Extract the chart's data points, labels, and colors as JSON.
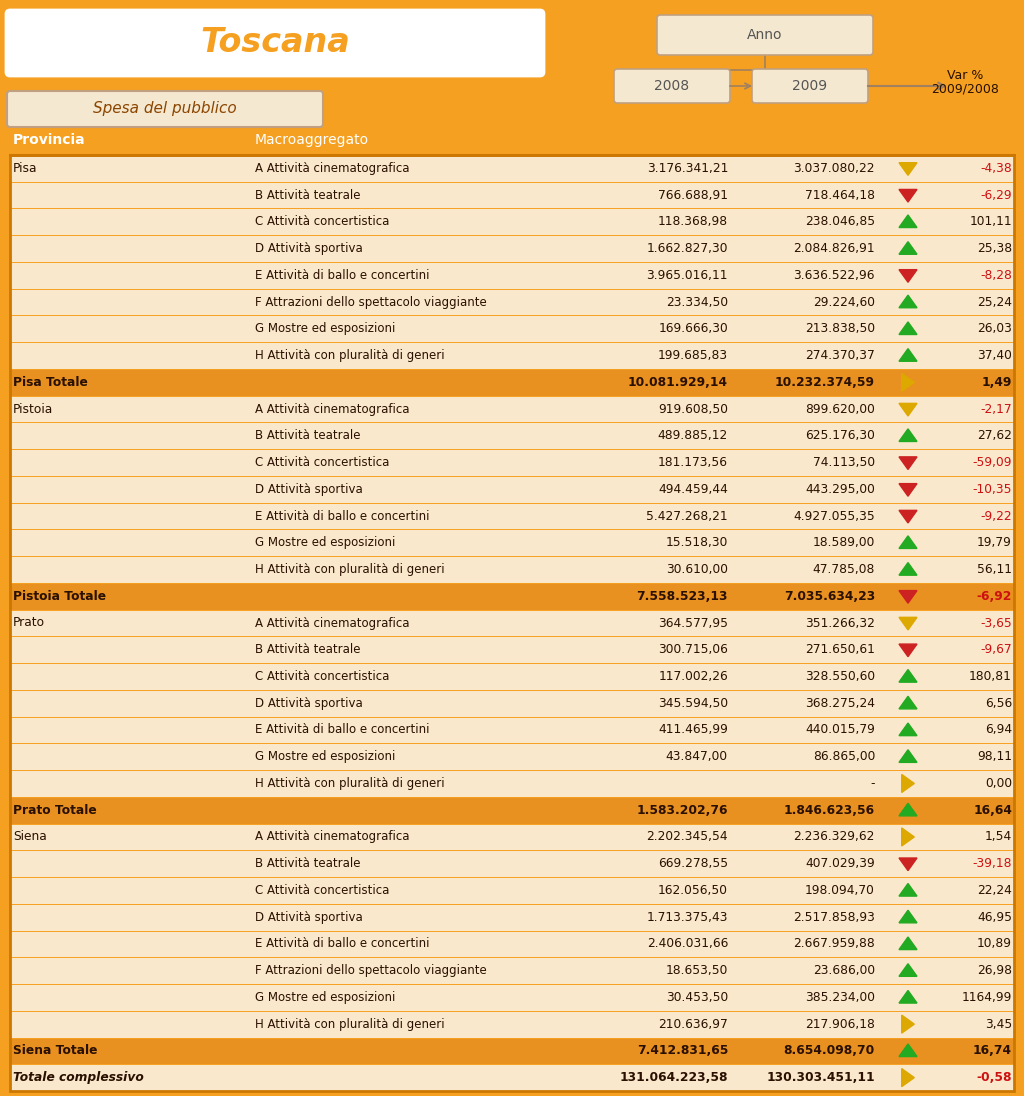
{
  "title": "Toscana",
  "subtitle": "Spesa del pubblico",
  "rows": [
    {
      "provincia": "Pisa",
      "macro": "A Attività cinematografica",
      "v2008": "3.176.341,21",
      "v2009": "3.037.080,22",
      "arrow": "down_yellow",
      "var": "-4,38",
      "var_neg": true
    },
    {
      "provincia": "",
      "macro": "B Attività teatrale",
      "v2008": "766.688,91",
      "v2009": "718.464,18",
      "arrow": "down_red",
      "var": "-6,29",
      "var_neg": true
    },
    {
      "provincia": "",
      "macro": "C Attività concertistica",
      "v2008": "118.368,98",
      "v2009": "238.046,85",
      "arrow": "up_green",
      "var": "101,11",
      "var_neg": false
    },
    {
      "provincia": "",
      "macro": "D Attività sportiva",
      "v2008": "1.662.827,30",
      "v2009": "2.084.826,91",
      "arrow": "up_green",
      "var": "25,38",
      "var_neg": false
    },
    {
      "provincia": "",
      "macro": "E Attività di ballo e concertini",
      "v2008": "3.965.016,11",
      "v2009": "3.636.522,96",
      "arrow": "down_red",
      "var": "-8,28",
      "var_neg": true
    },
    {
      "provincia": "",
      "macro": "F Attrazioni dello spettacolo viaggiante",
      "v2008": "23.334,50",
      "v2009": "29.224,60",
      "arrow": "up_green",
      "var": "25,24",
      "var_neg": false
    },
    {
      "provincia": "",
      "macro": "G Mostre ed esposizioni",
      "v2008": "169.666,30",
      "v2009": "213.838,50",
      "arrow": "up_green",
      "var": "26,03",
      "var_neg": false
    },
    {
      "provincia": "",
      "macro": "H Attività con pluralità di generi",
      "v2008": "199.685,83",
      "v2009": "274.370,37",
      "arrow": "up_green",
      "var": "37,40",
      "var_neg": false
    },
    {
      "provincia": "Pisa Totale",
      "macro": "",
      "v2008": "10.081.929,14",
      "v2009": "10.232.374,59",
      "arrow": "right_yellow",
      "var": "1,49",
      "var_neg": false,
      "is_total": true
    },
    {
      "provincia": "Pistoia",
      "macro": "A Attività cinematografica",
      "v2008": "919.608,50",
      "v2009": "899.620,00",
      "arrow": "down_yellow",
      "var": "-2,17",
      "var_neg": true
    },
    {
      "provincia": "",
      "macro": "B Attività teatrale",
      "v2008": "489.885,12",
      "v2009": "625.176,30",
      "arrow": "up_green",
      "var": "27,62",
      "var_neg": false
    },
    {
      "provincia": "",
      "macro": "C Attività concertistica",
      "v2008": "181.173,56",
      "v2009": "74.113,50",
      "arrow": "down_red",
      "var": "-59,09",
      "var_neg": true
    },
    {
      "provincia": "",
      "macro": "D Attività sportiva",
      "v2008": "494.459,44",
      "v2009": "443.295,00",
      "arrow": "down_red",
      "var": "-10,35",
      "var_neg": true
    },
    {
      "provincia": "",
      "macro": "E Attività di ballo e concertini",
      "v2008": "5.427.268,21",
      "v2009": "4.927.055,35",
      "arrow": "down_red",
      "var": "-9,22",
      "var_neg": true
    },
    {
      "provincia": "",
      "macro": "G Mostre ed esposizioni",
      "v2008": "15.518,30",
      "v2009": "18.589,00",
      "arrow": "up_green",
      "var": "19,79",
      "var_neg": false
    },
    {
      "provincia": "",
      "macro": "H Attività con pluralità di generi",
      "v2008": "30.610,00",
      "v2009": "47.785,08",
      "arrow": "up_green",
      "var": "56,11",
      "var_neg": false
    },
    {
      "provincia": "Pistoia Totale",
      "macro": "",
      "v2008": "7.558.523,13",
      "v2009": "7.035.634,23",
      "arrow": "down_red",
      "var": "-6,92",
      "var_neg": true,
      "is_total": true
    },
    {
      "provincia": "Prato",
      "macro": "A Attività cinematografica",
      "v2008": "364.577,95",
      "v2009": "351.266,32",
      "arrow": "down_yellow",
      "var": "-3,65",
      "var_neg": true
    },
    {
      "provincia": "",
      "macro": "B Attività teatrale",
      "v2008": "300.715,06",
      "v2009": "271.650,61",
      "arrow": "down_red",
      "var": "-9,67",
      "var_neg": true
    },
    {
      "provincia": "",
      "macro": "C Attività concertistica",
      "v2008": "117.002,26",
      "v2009": "328.550,60",
      "arrow": "up_green",
      "var": "180,81",
      "var_neg": false
    },
    {
      "provincia": "",
      "macro": "D Attività sportiva",
      "v2008": "345.594,50",
      "v2009": "368.275,24",
      "arrow": "up_green",
      "var": "6,56",
      "var_neg": false
    },
    {
      "provincia": "",
      "macro": "E Attività di ballo e concertini",
      "v2008": "411.465,99",
      "v2009": "440.015,79",
      "arrow": "up_green",
      "var": "6,94",
      "var_neg": false
    },
    {
      "provincia": "",
      "macro": "G Mostre ed esposizioni",
      "v2008": "43.847,00",
      "v2009": "86.865,00",
      "arrow": "up_green",
      "var": "98,11",
      "var_neg": false
    },
    {
      "provincia": "",
      "macro": "H Attività con pluralità di generi",
      "v2008": "",
      "v2009": "-",
      "arrow": "right_yellow",
      "var": "0,00",
      "var_neg": false
    },
    {
      "provincia": "Prato Totale",
      "macro": "",
      "v2008": "1.583.202,76",
      "v2009": "1.846.623,56",
      "arrow": "up_green",
      "var": "16,64",
      "var_neg": false,
      "is_total": true
    },
    {
      "provincia": "Siena",
      "macro": "A Attività cinematografica",
      "v2008": "2.202.345,54",
      "v2009": "2.236.329,62",
      "arrow": "right_yellow",
      "var": "1,54",
      "var_neg": false
    },
    {
      "provincia": "",
      "macro": "B Attività teatrale",
      "v2008": "669.278,55",
      "v2009": "407.029,39",
      "arrow": "down_red",
      "var": "-39,18",
      "var_neg": true
    },
    {
      "provincia": "",
      "macro": "C Attività concertistica",
      "v2008": "162.056,50",
      "v2009": "198.094,70",
      "arrow": "up_green",
      "var": "22,24",
      "var_neg": false
    },
    {
      "provincia": "",
      "macro": "D Attività sportiva",
      "v2008": "1.713.375,43",
      "v2009": "2.517.858,93",
      "arrow": "up_green",
      "var": "46,95",
      "var_neg": false
    },
    {
      "provincia": "",
      "macro": "E Attività di ballo e concertini",
      "v2008": "2.406.031,66",
      "v2009": "2.667.959,88",
      "arrow": "up_green",
      "var": "10,89",
      "var_neg": false
    },
    {
      "provincia": "",
      "macro": "F Attrazioni dello spettacolo viaggiante",
      "v2008": "18.653,50",
      "v2009": "23.686,00",
      "arrow": "up_green",
      "var": "26,98",
      "var_neg": false
    },
    {
      "provincia": "",
      "macro": "G Mostre ed esposizioni",
      "v2008": "30.453,50",
      "v2009": "385.234,00",
      "arrow": "up_green",
      "var": "1164,99",
      "var_neg": false
    },
    {
      "provincia": "",
      "macro": "H Attività con pluralità di generi",
      "v2008": "210.636,97",
      "v2009": "217.906,18",
      "arrow": "right_yellow2",
      "var": "3,45",
      "var_neg": false
    },
    {
      "provincia": "Siena Totale",
      "macro": "",
      "v2008": "7.412.831,65",
      "v2009": "8.654.098,70",
      "arrow": "up_green",
      "var": "16,74",
      "var_neg": false,
      "is_total": true
    },
    {
      "provincia": "Totale complessivo",
      "macro": "",
      "v2008": "131.064.223,58",
      "v2009": "130.303.451,11",
      "arrow": "right_yellow",
      "var": "-0,58",
      "var_neg": true,
      "is_grand_total": true
    }
  ]
}
